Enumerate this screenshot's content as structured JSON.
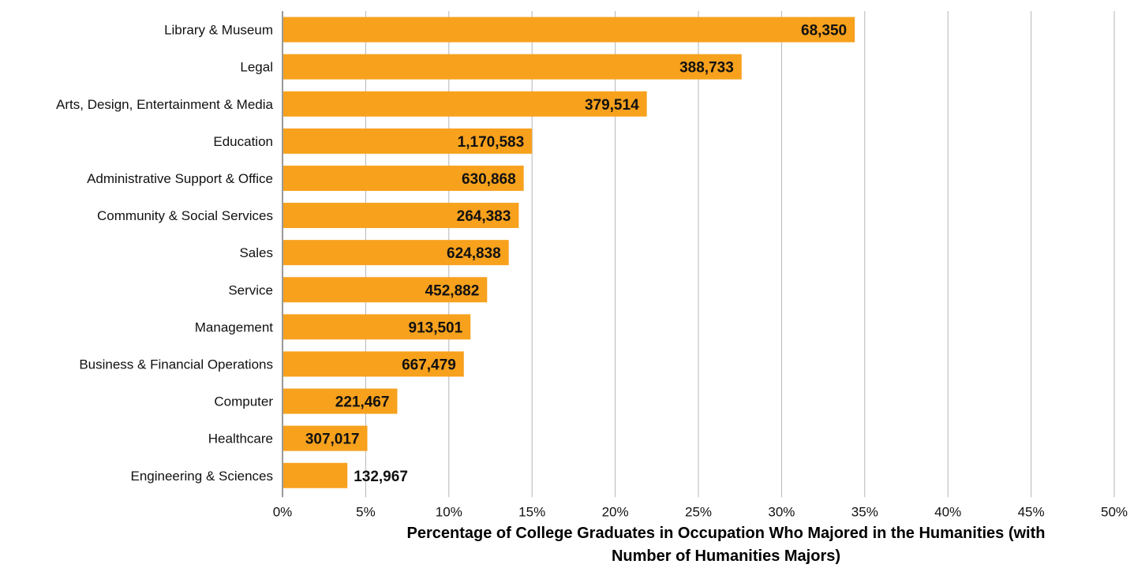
{
  "chart_data": {
    "type": "bar",
    "orientation": "horizontal",
    "title": "",
    "xlabel": "Percentage of College Graduates in Occupation Who Majored in the Humanities (with Number of Humanities Majors)",
    "ylabel": "",
    "xlim": [
      0,
      50
    ],
    "xticks": [
      "0%",
      "5%",
      "10%",
      "15%",
      "20%",
      "25%",
      "30%",
      "35%",
      "40%",
      "45%",
      "50%"
    ],
    "grid": "vertical",
    "bar_color": "#F7A11D",
    "categories": [
      "Library & Museum",
      "Legal",
      "Arts, Design, Entertainment & Media",
      "Education",
      "Administrative Support & Office",
      "Community & Social Services",
      "Sales",
      "Service",
      "Management",
      "Business & Financial Operations",
      "Computer",
      "Healthcare",
      "Engineering & Sciences"
    ],
    "values": [
      34.4,
      27.6,
      21.9,
      15.0,
      14.5,
      14.2,
      13.6,
      12.3,
      11.3,
      10.9,
      6.9,
      5.1,
      3.9
    ],
    "data_labels": [
      "68,350",
      "388,733",
      "379,514",
      "1,170,583",
      "630,868",
      "264,383",
      "624,838",
      "452,882",
      "913,501",
      "667,479",
      "221,467",
      "307,017",
      "132,967"
    ]
  }
}
